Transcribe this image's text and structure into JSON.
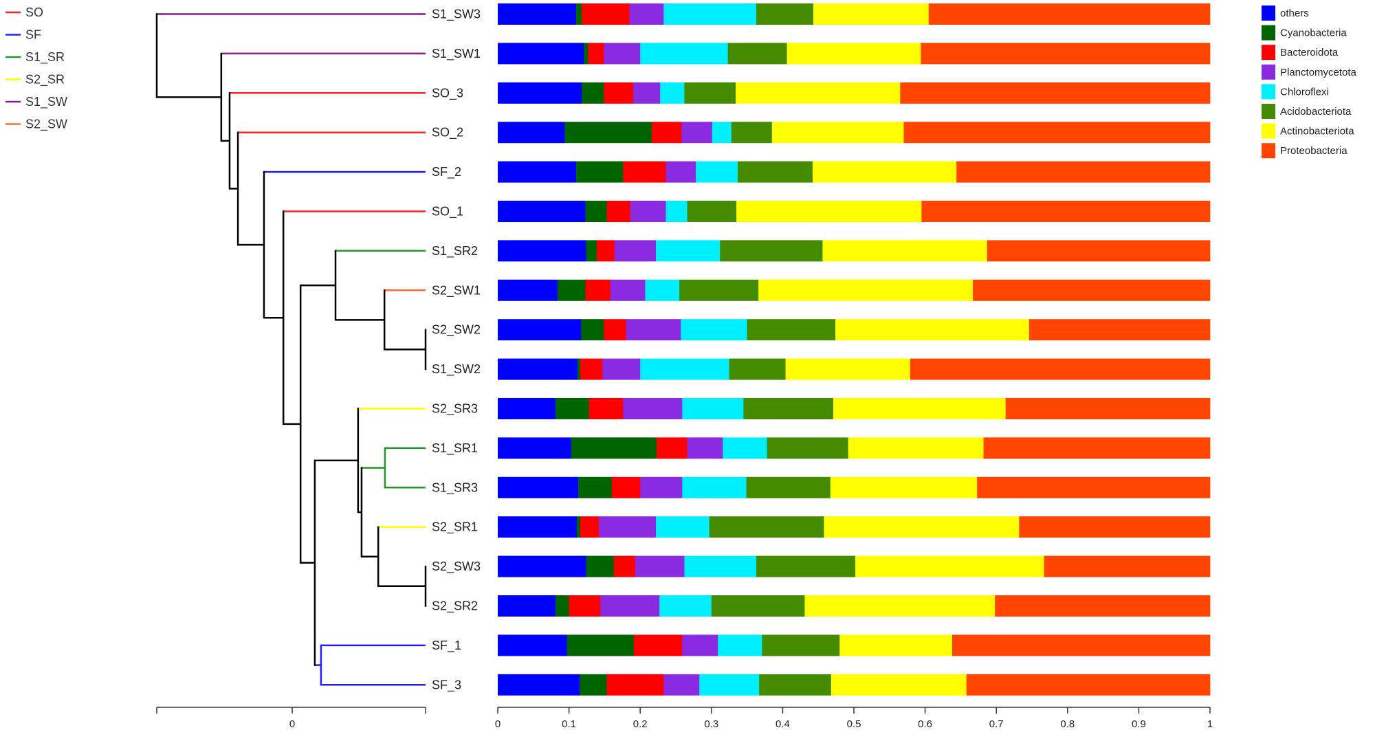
{
  "chart_data": {
    "type": "bar",
    "orientation": "horizontal-stacked",
    "title": "",
    "xlabel": "",
    "ylabel": "",
    "xlim": [
      0,
      1
    ],
    "xticks": [
      "0",
      "0.1",
      "0.2",
      "0.3",
      "0.4",
      "0.5",
      "0.6",
      "0.7",
      "0.8",
      "0.9",
      "1"
    ],
    "legend_position": "top-right",
    "phyla": [
      {
        "name": "others",
        "color": "#0000ff"
      },
      {
        "name": "Cyanobacteria",
        "color": "#006400"
      },
      {
        "name": "Bacteroidota",
        "color": "#ff0000"
      },
      {
        "name": "Planctomycetota",
        "color": "#8a2be2"
      },
      {
        "name": "Chloroflexi",
        "color": "#00efff"
      },
      {
        "name": "Acidobacteriota",
        "color": "#458b00"
      },
      {
        "name": "Actinobacteriota",
        "color": "#ffff00"
      },
      {
        "name": "Proteobacteria",
        "color": "#ff4500"
      }
    ],
    "samples": [
      {
        "name": "S1_SW3",
        "group": "S1_SW",
        "values": [
          0.11,
          0.008,
          0.067,
          0.048,
          0.13,
          0.08,
          0.162,
          0.395
        ]
      },
      {
        "name": "S1_SW1",
        "group": "S1_SW",
        "values": [
          0.121,
          0.006,
          0.022,
          0.051,
          0.123,
          0.083,
          0.188,
          0.406
        ]
      },
      {
        "name": "SO_3",
        "group": "SO",
        "values": [
          0.118,
          0.031,
          0.041,
          0.038,
          0.034,
          0.072,
          0.231,
          0.435
        ]
      },
      {
        "name": "SO_2",
        "group": "SO",
        "values": [
          0.094,
          0.122,
          0.042,
          0.043,
          0.027,
          0.057,
          0.185,
          0.43
        ]
      },
      {
        "name": "SF_2",
        "group": "SF",
        "values": [
          0.11,
          0.066,
          0.06,
          0.042,
          0.059,
          0.105,
          0.202,
          0.356
        ]
      },
      {
        "name": "SO_1",
        "group": "SO",
        "values": [
          0.123,
          0.03,
          0.033,
          0.05,
          0.03,
          0.069,
          0.26,
          0.405
        ]
      },
      {
        "name": "S1_SR2",
        "group": "S1_SR",
        "values": [
          0.124,
          0.015,
          0.025,
          0.058,
          0.09,
          0.144,
          0.231,
          0.313
        ]
      },
      {
        "name": "S2_SW1",
        "group": "S2_SW",
        "values": [
          0.084,
          0.039,
          0.035,
          0.049,
          0.048,
          0.111,
          0.301,
          0.333
        ]
      },
      {
        "name": "S2_SW2",
        "group": "S2_SW",
        "values": [
          0.117,
          0.032,
          0.031,
          0.077,
          0.093,
          0.124,
          0.272,
          0.254
        ]
      },
      {
        "name": "S1_SW2",
        "group": "S1_SW",
        "values": [
          0.112,
          0.004,
          0.031,
          0.053,
          0.125,
          0.079,
          0.175,
          0.421
        ]
      },
      {
        "name": "S2_SR3",
        "group": "S2_SR",
        "values": [
          0.081,
          0.047,
          0.048,
          0.083,
          0.086,
          0.126,
          0.242,
          0.287
        ]
      },
      {
        "name": "S1_SR1",
        "group": "S1_SR",
        "values": [
          0.103,
          0.12,
          0.043,
          0.05,
          0.062,
          0.114,
          0.19,
          0.318
        ]
      },
      {
        "name": "S1_SR3",
        "group": "S1_SR",
        "values": [
          0.113,
          0.047,
          0.04,
          0.059,
          0.09,
          0.118,
          0.206,
          0.327
        ]
      },
      {
        "name": "S2_SR1",
        "group": "S2_SR",
        "values": [
          0.111,
          0.005,
          0.026,
          0.08,
          0.075,
          0.161,
          0.274,
          0.268
        ]
      },
      {
        "name": "S2_SW3",
        "group": "S2_SW",
        "values": [
          0.124,
          0.039,
          0.03,
          0.069,
          0.101,
          0.139,
          0.265,
          0.233
        ]
      },
      {
        "name": "S2_SR2",
        "group": "S2_SR",
        "values": [
          0.081,
          0.019,
          0.044,
          0.083,
          0.073,
          0.131,
          0.267,
          0.302
        ]
      },
      {
        "name": "SF_1",
        "group": "SF",
        "values": [
          0.097,
          0.094,
          0.068,
          0.05,
          0.062,
          0.109,
          0.158,
          0.362
        ]
      },
      {
        "name": "SF_3",
        "group": "SF",
        "values": [
          0.115,
          0.038,
          0.08,
          0.05,
          0.084,
          0.101,
          0.19,
          0.342
        ]
      }
    ],
    "groups": [
      {
        "name": "SO",
        "color": "#ff2020"
      },
      {
        "name": "SF",
        "color": "#2020ff"
      },
      {
        "name": "S1_SR",
        "color": "#22962a"
      },
      {
        "name": "S2_SR",
        "color": "#ffff00"
      },
      {
        "name": "S1_SW",
        "color": "#8a1a8f"
      },
      {
        "name": "S2_SW",
        "color": "#ff6a30"
      }
    ],
    "dendrogram": {
      "axis_ticks": [
        {
          "h": 1.0,
          "label": ""
        },
        {
          "h": 0.496,
          "label": "0"
        },
        {
          "h": 0.0,
          "label": ""
        }
      ],
      "tree": {
        "h": 1.0,
        "children": [
          "S1_SW3",
          {
            "h": 0.76,
            "children": [
              "S1_SW1",
              {
                "h": 0.729,
                "children": [
                  "SO_3",
                  {
                    "h": 0.698,
                    "children": [
                      "SO_2",
                      {
                        "h": 0.601,
                        "children": [
                          "SF_2",
                          {
                            "h": 0.529,
                            "children": [
                              "SO_1",
                              {
                                "h": 0.465,
                                "children": [
                                  {
                                    "h": 0.335,
                                    "children": [
                                      "S1_SR2",
                                      {
                                        "h": 0.153,
                                        "children": [
                                          "S2_SW1",
                                          {
                                            "h": 0.0,
                                            "children": [
                                              "S2_SW2",
                                              "S1_SW2"
                                            ]
                                          }
                                        ]
                                      }
                                    ]
                                  },
                                  {
                                    "h": 0.412,
                                    "children": [
                                      {
                                        "h": 0.251,
                                        "children": [
                                          "S2_SR3",
                                          {
                                            "h": 0.238,
                                            "children": [
                                              {
                                                "h": 0.151,
                                                "children": [
                                                  "S1_SR1",
                                                  "S1_SR3"
                                                ]
                                              },
                                              {
                                                "h": 0.176,
                                                "children": [
                                                  "S2_SR1",
                                                  {
                                                    "h": 0.0,
                                                    "children": [
                                                      "S2_SW3",
                                                      "S2_SR2"
                                                    ]
                                                  }
                                                ]
                                              }
                                            ]
                                          }
                                        ]
                                      },
                                      {
                                        "h": 0.389,
                                        "children": [
                                          "SF_1",
                                          "SF_3"
                                        ]
                                      }
                                    ]
                                  }
                                ]
                              }
                            ]
                          }
                        ]
                      }
                    ]
                  }
                ]
              }
            ]
          }
        ]
      }
    }
  }
}
